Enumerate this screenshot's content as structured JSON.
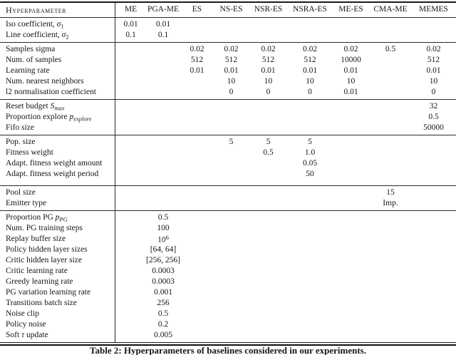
{
  "table": {
    "header": {
      "label": "Hyperparameter",
      "columns": [
        "ME",
        "PGA-ME",
        "ES",
        "NS-ES",
        "NSR-ES",
        "NSRA-ES",
        "ME-ES",
        "CMA-ME",
        "MEMES"
      ]
    },
    "sections": [
      {
        "rows": [
          {
            "label": [
              {
                "t": "Iso coefficient, "
              },
              {
                "t": "σ",
                "i": true
              },
              {
                "t": "1",
                "sub": true
              }
            ],
            "values": [
              "0.01",
              "0.01",
              "",
              "",
              "",
              "",
              "",
              "",
              ""
            ]
          },
          {
            "label": [
              {
                "t": "Line coefficient, "
              },
              {
                "t": "σ",
                "i": true
              },
              {
                "t": "2",
                "sub": true
              }
            ],
            "values": [
              "0.1",
              "0.1",
              "",
              "",
              "",
              "",
              "",
              "",
              ""
            ]
          }
        ]
      },
      {
        "rows": [
          {
            "label": [
              {
                "t": "Samples sigma"
              }
            ],
            "values": [
              "",
              "",
              "0.02",
              "0.02",
              "0.02",
              "0.02",
              "0.02",
              "0.5",
              "0.02"
            ]
          },
          {
            "label": [
              {
                "t": "Num. of samples"
              }
            ],
            "values": [
              "",
              "",
              "512",
              "512",
              "512",
              "512",
              "10000",
              "",
              "512"
            ]
          },
          {
            "label": [
              {
                "t": "Learning rate"
              }
            ],
            "values": [
              "",
              "",
              "0.01",
              "0.01",
              "0.01",
              "0.01",
              "0.01",
              "",
              "0.01"
            ]
          },
          {
            "label": [
              {
                "t": "Num. nearest neighbors"
              }
            ],
            "values": [
              "",
              "",
              "",
              "10",
              "10",
              "10",
              "10",
              "",
              "10"
            ]
          },
          {
            "label": [
              {
                "t": "l2 normalisation coefficient"
              }
            ],
            "values": [
              "",
              "",
              "",
              "0",
              "0",
              "0",
              "0.01",
              "",
              "0"
            ]
          }
        ]
      },
      {
        "rows": [
          {
            "label": [
              {
                "t": "Reset budget "
              },
              {
                "t": "S",
                "i": true
              },
              {
                "t": "max",
                "sub": true,
                "i": true
              }
            ],
            "values": [
              "",
              "",
              "",
              "",
              "",
              "",
              "",
              "",
              "32"
            ]
          },
          {
            "label": [
              {
                "t": "Proportion explore "
              },
              {
                "t": "p",
                "i": true
              },
              {
                "t": "explore",
                "sub": true,
                "i": true
              }
            ],
            "values": [
              "",
              "",
              "",
              "",
              "",
              "",
              "",
              "",
              "0.5"
            ]
          },
          {
            "label": [
              {
                "t": "Fifo size"
              }
            ],
            "values": [
              "",
              "",
              "",
              "",
              "",
              "",
              "",
              "",
              "50000"
            ]
          }
        ]
      },
      {
        "rows": [
          {
            "label": [
              {
                "t": "Pop. size"
              }
            ],
            "values": [
              "",
              "",
              "",
              "5",
              "5",
              "5",
              "",
              "",
              ""
            ]
          },
          {
            "label": [
              {
                "t": "Fitness weight"
              }
            ],
            "values": [
              "",
              "",
              "",
              "",
              "0.5",
              "1.0",
              "",
              "",
              ""
            ]
          },
          {
            "label": [
              {
                "t": "Adapt. fitness weight amount"
              }
            ],
            "values": [
              "",
              "",
              "",
              "",
              "",
              "0.05",
              "",
              "",
              ""
            ]
          },
          {
            "label": [
              {
                "t": "Adapt. fitness weight period"
              }
            ],
            "values": [
              "",
              "",
              "",
              "",
              "",
              "50",
              "",
              "",
              ""
            ]
          }
        ]
      },
      {
        "rows": [
          {
            "label": [
              {
                "t": "Pool size"
              }
            ],
            "values": [
              "",
              "",
              "",
              "",
              "",
              "",
              "",
              "15",
              ""
            ]
          },
          {
            "label": [
              {
                "t": "Emitter type"
              }
            ],
            "values": [
              "",
              "",
              "",
              "",
              "",
              "",
              "",
              "Imp.",
              ""
            ]
          }
        ]
      },
      {
        "rows": [
          {
            "label": [
              {
                "t": "Proportion PG "
              },
              {
                "t": "p",
                "i": true
              },
              {
                "t": "PG",
                "sub": true,
                "i": true
              }
            ],
            "values": [
              "",
              "0.5",
              "",
              "",
              "",
              "",
              "",
              "",
              ""
            ]
          },
          {
            "label": [
              {
                "t": "Num. PG training steps"
              }
            ],
            "values": [
              "",
              "100",
              "",
              "",
              "",
              "",
              "",
              "",
              ""
            ]
          },
          {
            "label": [
              {
                "t": "Replay buffer size"
              }
            ],
            "values": [
              "",
              [
                {
                  "t": "10"
                },
                {
                  "t": "6",
                  "sup": true
                }
              ],
              "",
              "",
              "",
              "",
              "",
              "",
              ""
            ]
          },
          {
            "label": [
              {
                "t": "Policy hidden layer sizes"
              }
            ],
            "values": [
              "",
              "[64, 64]",
              "",
              "",
              "",
              "",
              "",
              "",
              ""
            ]
          },
          {
            "label": [
              {
                "t": "Critic hidden layer size"
              }
            ],
            "values": [
              "",
              "[256, 256]",
              "",
              "",
              "",
              "",
              "",
              "",
              ""
            ]
          },
          {
            "label": [
              {
                "t": "Critic learning rate"
              }
            ],
            "values": [
              "",
              "0.0003",
              "",
              "",
              "",
              "",
              "",
              "",
              ""
            ]
          },
          {
            "label": [
              {
                "t": "Greedy learning rate"
              }
            ],
            "values": [
              "",
              "0.0003",
              "",
              "",
              "",
              "",
              "",
              "",
              ""
            ]
          },
          {
            "label": [
              {
                "t": "PG variation learning rate"
              }
            ],
            "values": [
              "",
              "0.001",
              "",
              "",
              "",
              "",
              "",
              "",
              ""
            ]
          },
          {
            "label": [
              {
                "t": "Transitions batch size"
              }
            ],
            "values": [
              "",
              "256",
              "",
              "",
              "",
              "",
              "",
              "",
              ""
            ]
          },
          {
            "label": [
              {
                "t": "Noise clip"
              }
            ],
            "values": [
              "",
              "0.5",
              "",
              "",
              "",
              "",
              "",
              "",
              ""
            ]
          },
          {
            "label": [
              {
                "t": "Policy noise"
              }
            ],
            "values": [
              "",
              "0.2",
              "",
              "",
              "",
              "",
              "",
              "",
              ""
            ]
          },
          {
            "label": [
              {
                "t": "Soft "
              },
              {
                "t": "τ",
                "i": true
              },
              {
                "t": " update"
              }
            ],
            "values": [
              "",
              "0.005",
              "",
              "",
              "",
              "",
              "",
              "",
              ""
            ]
          }
        ]
      }
    ],
    "caption": "Table 2: Hyperparameters of baselines considered in our experiments."
  }
}
